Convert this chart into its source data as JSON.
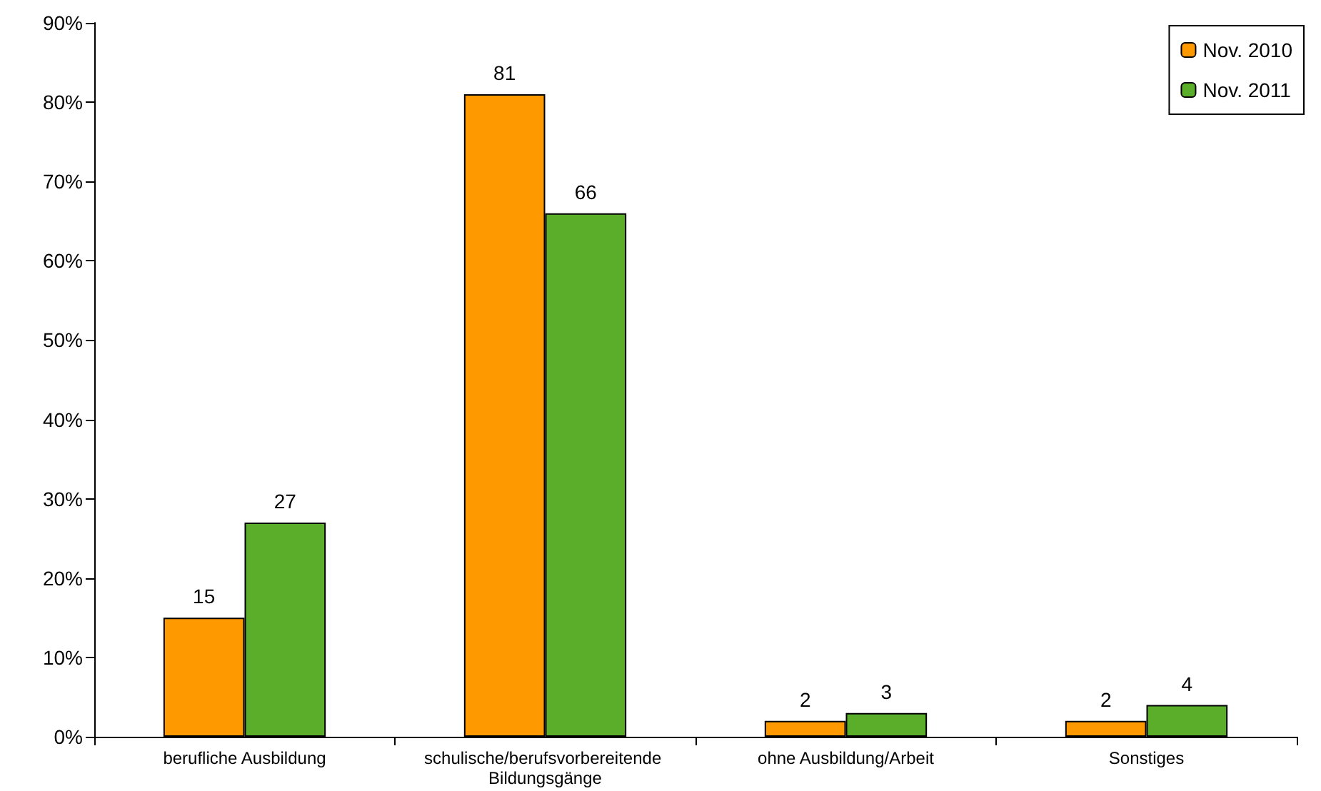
{
  "chart_data": {
    "type": "bar",
    "categories": [
      "berufliche Ausbildung",
      "schulische/berufsvorbereitende Bildungsgänge",
      "ohne Ausbildung/Arbeit",
      "Sonstiges"
    ],
    "series": [
      {
        "name": "Nov. 2010",
        "color": "#ff9900",
        "values": [
          15,
          81,
          2,
          2
        ]
      },
      {
        "name": "Nov. 2011",
        "color": "#5aae2a",
        "values": [
          27,
          66,
          3,
          4
        ]
      }
    ],
    "ylim": [
      0,
      90
    ],
    "yticks": [
      {
        "value": 0,
        "label": "0%"
      },
      {
        "value": 10,
        "label": "10%"
      },
      {
        "value": 20,
        "label": "20%"
      },
      {
        "value": 30,
        "label": "30%"
      },
      {
        "value": 40,
        "label": "40%"
      },
      {
        "value": 50,
        "label": "50%"
      },
      {
        "value": 60,
        "label": "60%"
      },
      {
        "value": 70,
        "label": "70%"
      },
      {
        "value": 80,
        "label": "80%"
      },
      {
        "value": 90,
        "label": "90%"
      }
    ],
    "data_labels": true,
    "grid": false,
    "legend": "top right"
  }
}
